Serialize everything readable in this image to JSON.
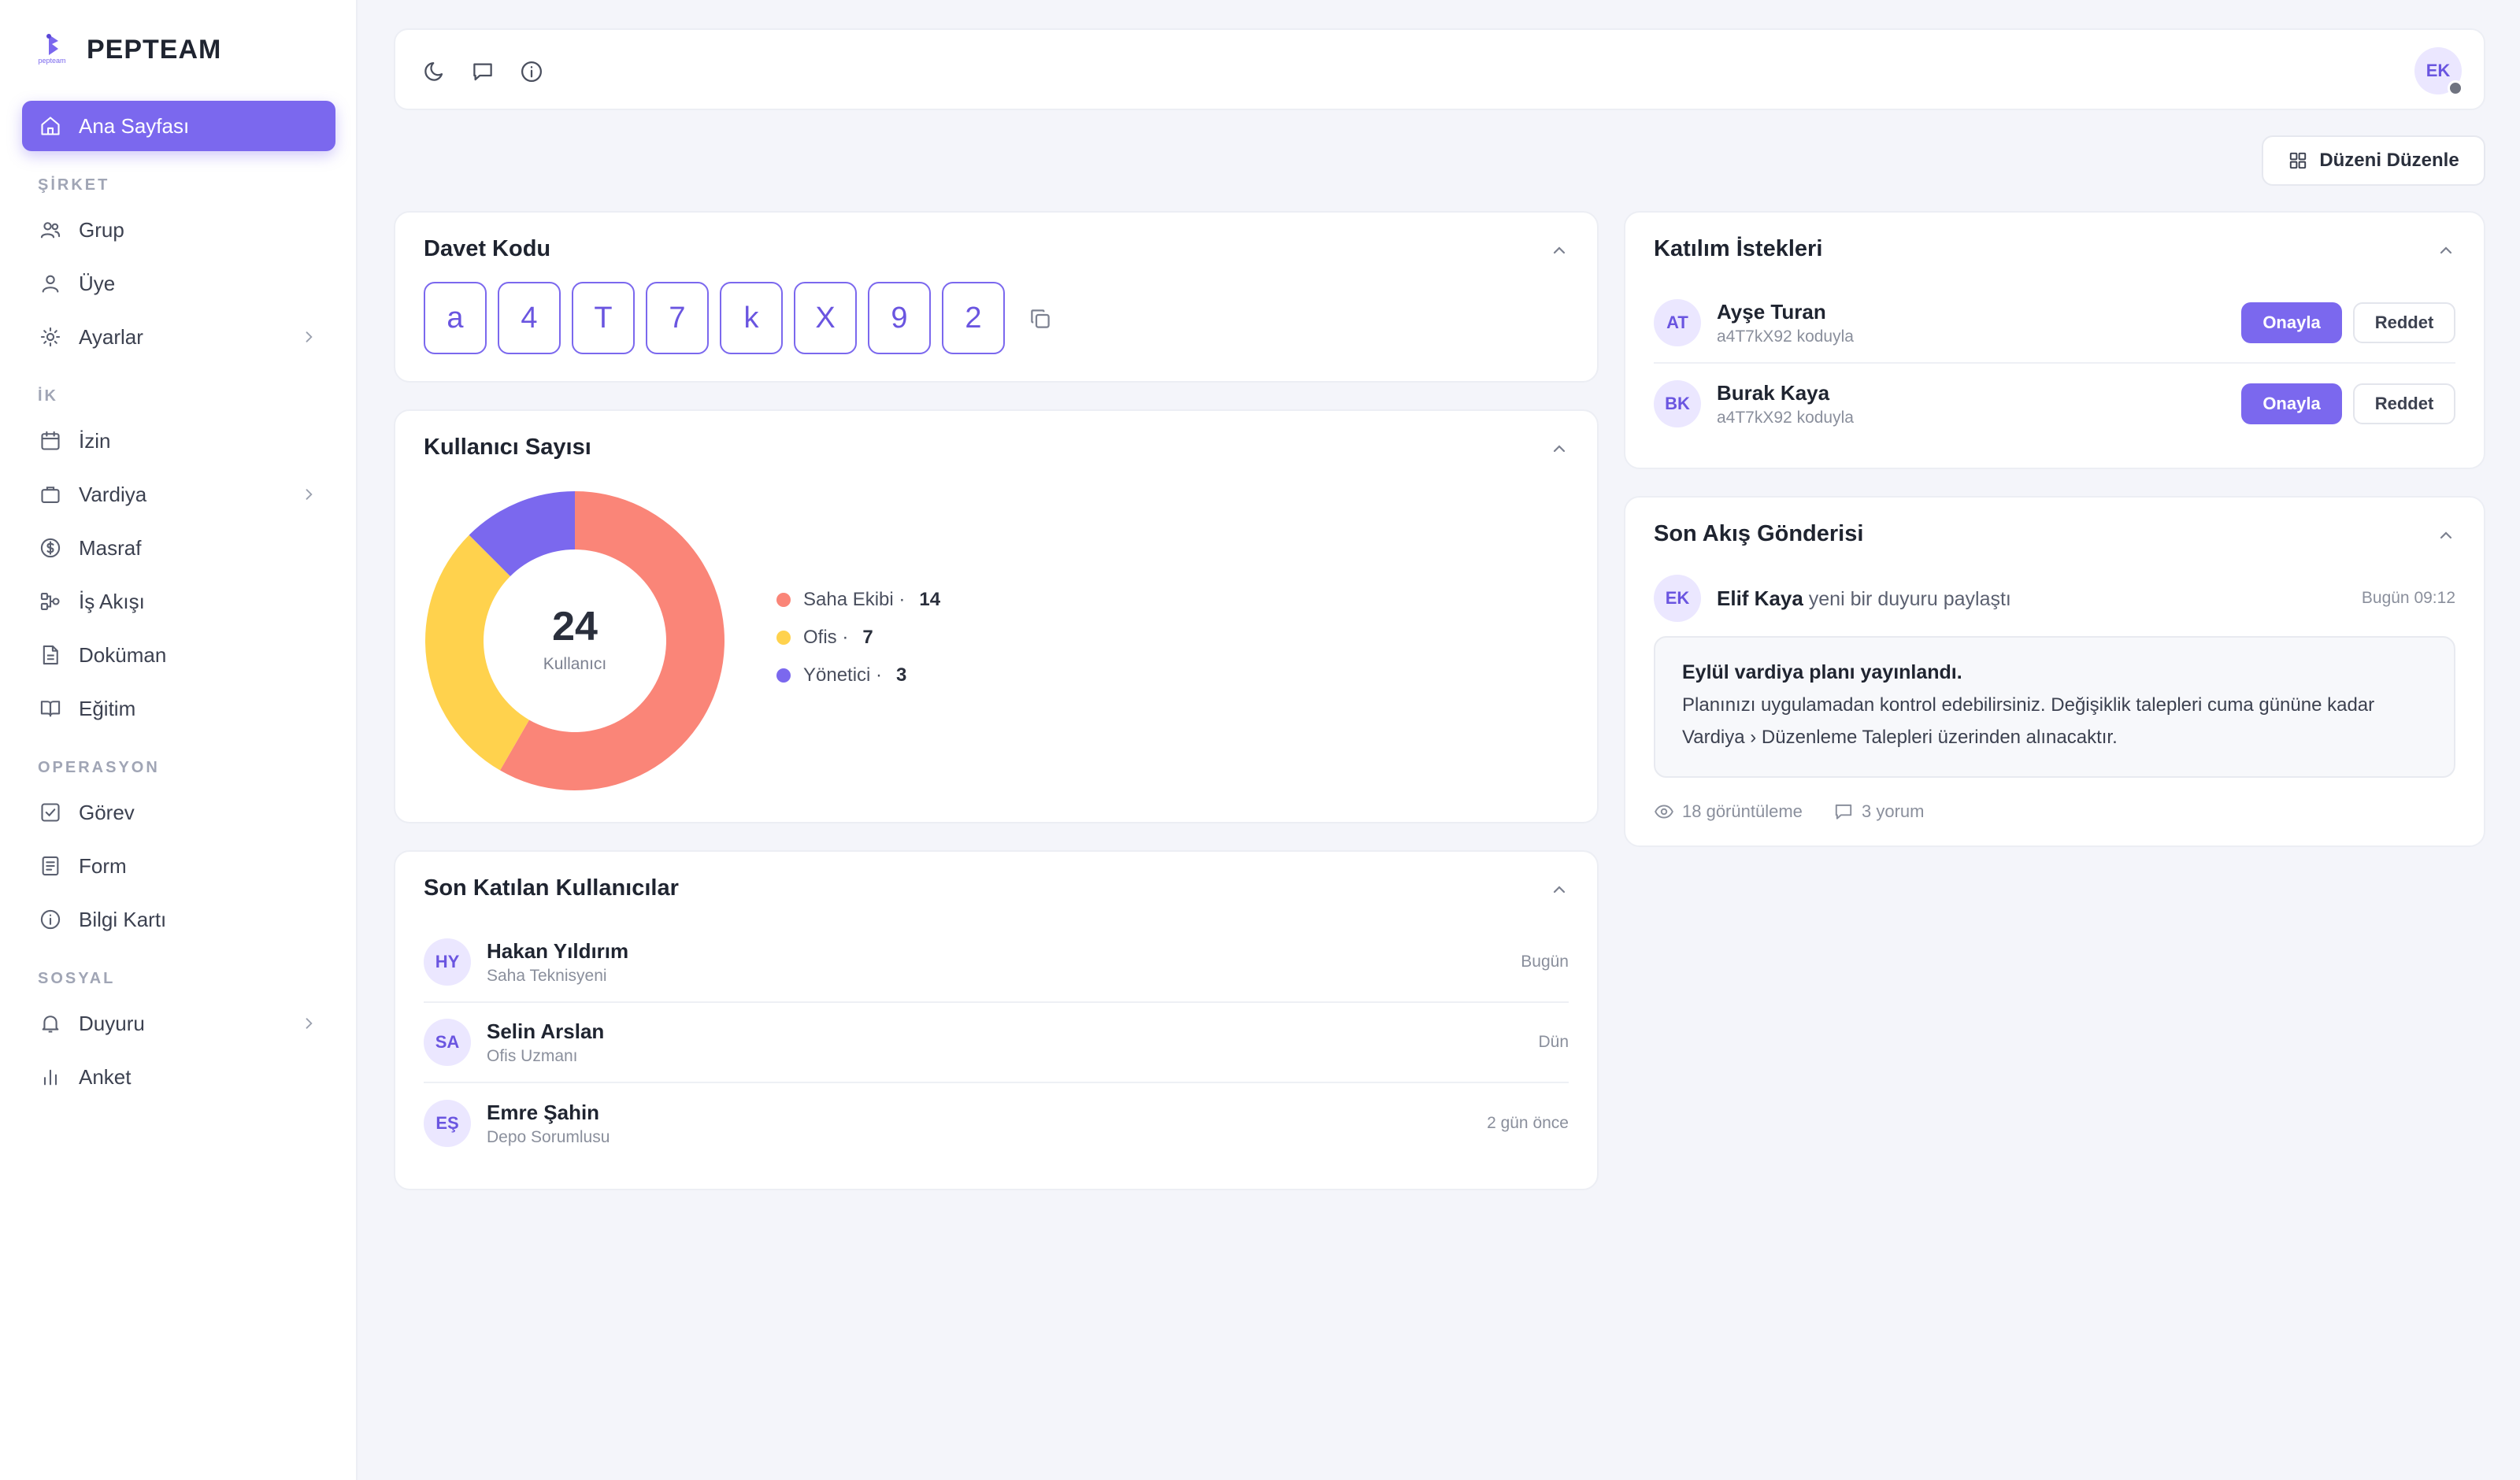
{
  "brand": {
    "name": "PEPTEAM",
    "logo_text": "pepteam"
  },
  "sidebar": {
    "active": {
      "label": "Ana Sayfası",
      "icon": "home-icon"
    },
    "sections": [
      {
        "title": "ŞİRKET",
        "items": [
          {
            "label": "Grup",
            "icon": "users-icon"
          },
          {
            "label": "Üye",
            "icon": "user-icon"
          },
          {
            "label": "Ayarlar",
            "icon": "gear-icon",
            "has_submenu": true
          }
        ]
      },
      {
        "title": "İK",
        "items": [
          {
            "label": "İzin",
            "icon": "calendar-icon"
          },
          {
            "label": "Vardiya",
            "icon": "briefcase-icon",
            "has_submenu": true
          },
          {
            "label": "Masraf",
            "icon": "dollar-icon"
          },
          {
            "label": "İş Akışı",
            "icon": "workflow-icon"
          },
          {
            "label": "Doküman",
            "icon": "document-icon"
          },
          {
            "label": "Eğitim",
            "icon": "book-icon"
          }
        ]
      },
      {
        "title": "OPERASYON",
        "items": [
          {
            "label": "Görev",
            "icon": "checkbox-icon"
          },
          {
            "label": "Form",
            "icon": "form-icon"
          },
          {
            "label": "Bilgi Kartı",
            "icon": "info-icon"
          }
        ]
      },
      {
        "title": "SOSYAL",
        "items": [
          {
            "label": "Duyuru",
            "icon": "bell-icon",
            "has_submenu": true
          },
          {
            "label": "Anket",
            "icon": "bar-chart-icon"
          }
        ]
      }
    ]
  },
  "topbar": {
    "user_initials": "EK"
  },
  "layout_button": {
    "label": "Düzeni Düzenle"
  },
  "invite": {
    "title": "Davet Kodu",
    "chars": [
      "a",
      "4",
      "T",
      "7",
      "k",
      "X",
      "9",
      "2"
    ]
  },
  "users_chart": {
    "title": "Kullanıcı Sayısı",
    "total": "24",
    "total_label": "Kullanıcı",
    "chart_data": {
      "type": "pie",
      "categories": [
        "Saha Ekibi",
        "Ofis",
        "Yönetici"
      ],
      "values": [
        14,
        7,
        3
      ],
      "colors": [
        "#fa8578",
        "#ffd24d",
        "#7b68ee"
      ]
    },
    "legend": [
      {
        "label": "Saha Ekibi ·",
        "value": "14",
        "color": "#fa8578"
      },
      {
        "label": "Ofis ·",
        "value": "7",
        "color": "#ffd24d"
      },
      {
        "label": "Yönetici ·",
        "value": "3",
        "color": "#7b68ee"
      }
    ]
  },
  "recent_users": {
    "title": "Son Katılan Kullanıcılar",
    "rows": [
      {
        "initials": "HY",
        "name": "Hakan Yıldırım",
        "role": "Saha Teknisyeni",
        "when": "Bugün"
      },
      {
        "initials": "SA",
        "name": "Selin Arslan",
        "role": "Ofis Uzmanı",
        "when": "Dün"
      },
      {
        "initials": "EŞ",
        "name": "Emre Şahin",
        "role": "Depo Sorumlusu",
        "when": "2 gün önce"
      }
    ]
  },
  "join_requests": {
    "title": "Katılım İstekleri",
    "approve_label": "Onayla",
    "reject_label": "Reddet",
    "rows": [
      {
        "initials": "AT",
        "name": "Ayşe Turan",
        "sub": "a4T7kX92 koduyla"
      },
      {
        "initials": "BK",
        "name": "Burak Kaya",
        "sub": "a4T7kX92 koduyla"
      }
    ]
  },
  "feed": {
    "title": "Son Akış Gönderisi",
    "author_initials": "EK",
    "author": "Elif Kaya",
    "action": "yeni bir duyuru paylaştı",
    "time": "Bugün 09:12",
    "post_title": "Eylül vardiya planı yayınlandı.",
    "post_body": "Planınızı uygulamadan kontrol edebilirsiniz. Değişiklik talepleri cuma gününe kadar Vardiya › Düzenleme Talepleri üzerinden alınacaktır.",
    "views": "18 görüntüleme",
    "comments": "3 yorum"
  }
}
